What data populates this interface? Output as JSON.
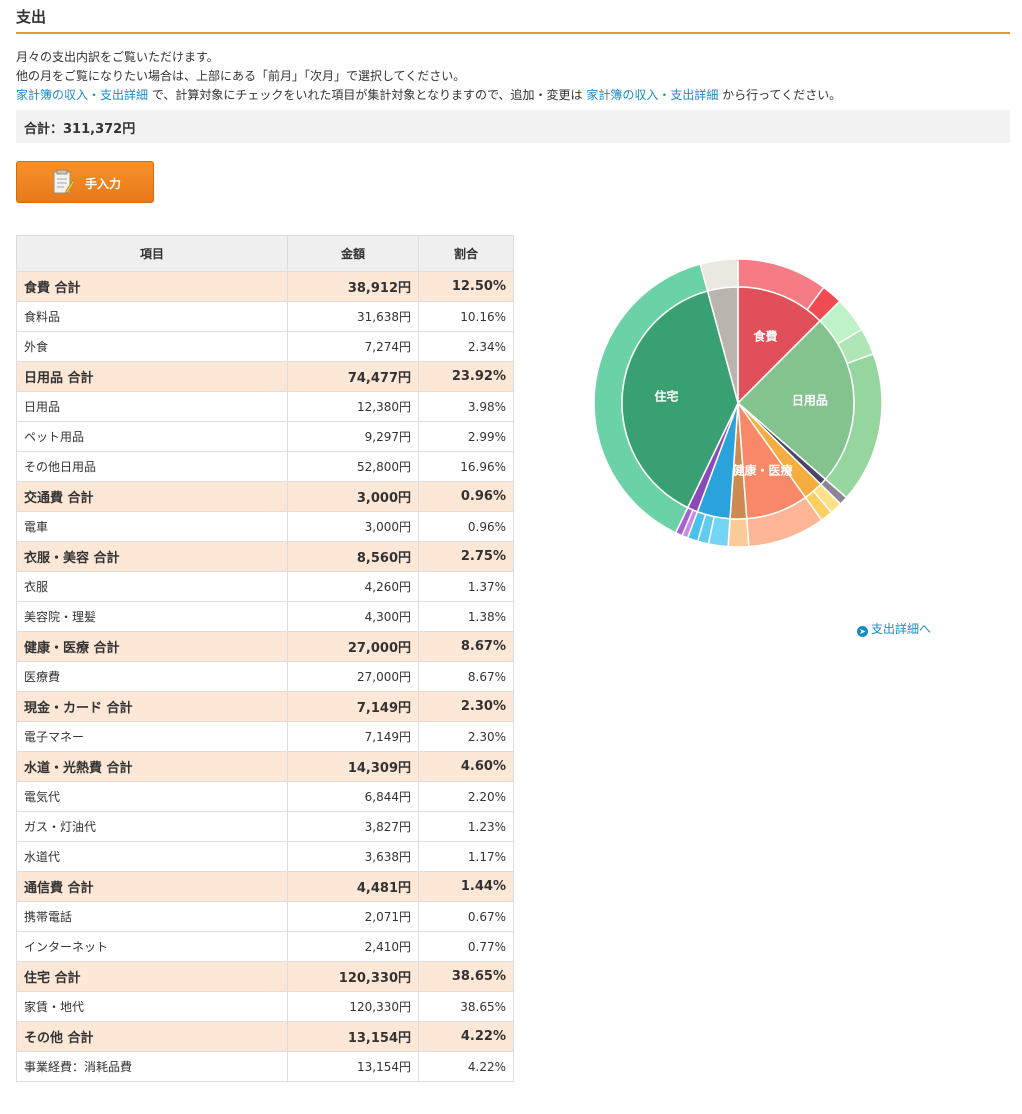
{
  "section_title": "支出",
  "intro": {
    "line1": "月々の支出内訳をご覧いただけます。",
    "line2": "他の月をご覧になりたい場合は、上部にある「前月」「次月」で選択してください。",
    "link1": "家計簿の収入・支出詳細",
    "line3_mid": " で、計算対象にチェックをいれた項目が集計対象となりますので、追加・変更は ",
    "link2": "家計簿の収入・支出詳細",
    "line3_end": " から行ってください。"
  },
  "total_label": "合計：311,372円",
  "manual_button": "手入力",
  "table": {
    "headers": [
      "項目",
      "金額",
      "割合"
    ],
    "rows": [
      {
        "type": "cat",
        "name": "食費 合計",
        "amount": "38,912円",
        "percent": "12.50%"
      },
      {
        "type": "sub",
        "name": "食料品",
        "amount": "31,638円",
        "percent": "10.16%"
      },
      {
        "type": "sub",
        "name": "外食",
        "amount": "7,274円",
        "percent": "2.34%"
      },
      {
        "type": "cat",
        "name": "日用品 合計",
        "amount": "74,477円",
        "percent": "23.92%"
      },
      {
        "type": "sub",
        "name": "日用品",
        "amount": "12,380円",
        "percent": "3.98%"
      },
      {
        "type": "sub",
        "name": "ペット用品",
        "amount": "9,297円",
        "percent": "2.99%"
      },
      {
        "type": "sub",
        "name": "その他日用品",
        "amount": "52,800円",
        "percent": "16.96%"
      },
      {
        "type": "cat",
        "name": "交通費 合計",
        "amount": "3,000円",
        "percent": "0.96%"
      },
      {
        "type": "sub",
        "name": "電車",
        "amount": "3,000円",
        "percent": "0.96%"
      },
      {
        "type": "cat",
        "name": "衣服・美容 合計",
        "amount": "8,560円",
        "percent": "2.75%"
      },
      {
        "type": "sub",
        "name": "衣服",
        "amount": "4,260円",
        "percent": "1.37%"
      },
      {
        "type": "sub",
        "name": "美容院・理髪",
        "amount": "4,300円",
        "percent": "1.38%"
      },
      {
        "type": "cat",
        "name": "健康・医療 合計",
        "amount": "27,000円",
        "percent": "8.67%"
      },
      {
        "type": "sub",
        "name": "医療費",
        "amount": "27,000円",
        "percent": "8.67%"
      },
      {
        "type": "cat",
        "name": "現金・カード 合計",
        "amount": "7,149円",
        "percent": "2.30%"
      },
      {
        "type": "sub",
        "name": "電子マネー",
        "amount": "7,149円",
        "percent": "2.30%"
      },
      {
        "type": "cat",
        "name": "水道・光熱費 合計",
        "amount": "14,309円",
        "percent": "4.60%"
      },
      {
        "type": "sub",
        "name": "電気代",
        "amount": "6,844円",
        "percent": "2.20%"
      },
      {
        "type": "sub",
        "name": "ガス・灯油代",
        "amount": "3,827円",
        "percent": "1.23%"
      },
      {
        "type": "sub",
        "name": "水道代",
        "amount": "3,638円",
        "percent": "1.17%"
      },
      {
        "type": "cat",
        "name": "通信費 合計",
        "amount": "4,481円",
        "percent": "1.44%"
      },
      {
        "type": "sub",
        "name": "携帯電話",
        "amount": "2,071円",
        "percent": "0.67%"
      },
      {
        "type": "sub",
        "name": "インターネット",
        "amount": "2,410円",
        "percent": "0.77%"
      },
      {
        "type": "cat",
        "name": "住宅 合計",
        "amount": "120,330円",
        "percent": "38.65%"
      },
      {
        "type": "sub",
        "name": "家賃・地代",
        "amount": "120,330円",
        "percent": "38.65%"
      },
      {
        "type": "cat",
        "name": "その他 合計",
        "amount": "13,154円",
        "percent": "4.22%"
      },
      {
        "type": "sub",
        "name": "事業経費：消耗品費",
        "amount": "13,154円",
        "percent": "4.22%"
      }
    ]
  },
  "chart_data": {
    "type": "pie",
    "inner": [
      {
        "name": "食費",
        "value": 38912,
        "color": "#e0505a",
        "label": "食費"
      },
      {
        "name": "日用品",
        "value": 74477,
        "color": "#82c38e",
        "label": "日用品"
      },
      {
        "name": "交通費",
        "value": 3000,
        "color": "#4a4466",
        "label": ""
      },
      {
        "name": "衣服・美容",
        "value": 8560,
        "color": "#f5ad40",
        "label": ""
      },
      {
        "name": "健康・医療",
        "value": 27000,
        "color": "#f98868",
        "label": "健康・医療"
      },
      {
        "name": "現金・カード",
        "value": 7149,
        "color": "#cf8a52",
        "label": ""
      },
      {
        "name": "水道・光熱費",
        "value": 14309,
        "color": "#2aa3dc",
        "label": ""
      },
      {
        "name": "通信費",
        "value": 4481,
        "color": "#8a48b8",
        "label": ""
      },
      {
        "name": "住宅",
        "value": 120330,
        "color": "#38a073",
        "label": "住宅"
      },
      {
        "name": "その他",
        "value": 13154,
        "color": "#b9b5ae",
        "label": ""
      }
    ],
    "outer": [
      {
        "name": "食料品",
        "value": 31638,
        "color": "#f57c84"
      },
      {
        "name": "外食",
        "value": 7274,
        "color": "#f04a52"
      },
      {
        "name": "日用品",
        "value": 12380,
        "color": "#bff2c7"
      },
      {
        "name": "ペット用品",
        "value": 9297,
        "color": "#aee6b5"
      },
      {
        "name": "その他日用品",
        "value": 52800,
        "color": "#95d59e"
      },
      {
        "name": "電車",
        "value": 3000,
        "color": "#8a8596"
      },
      {
        "name": "衣服",
        "value": 4260,
        "color": "#fde087"
      },
      {
        "name": "美容院・理髪",
        "value": 4300,
        "color": "#fbd060"
      },
      {
        "name": "医療費",
        "value": 27000,
        "color": "#fcb696"
      },
      {
        "name": "電子マネー",
        "value": 7149,
        "color": "#fccb9a"
      },
      {
        "name": "電気代",
        "value": 6844,
        "color": "#74d4f4"
      },
      {
        "name": "ガス・灯油代",
        "value": 3827,
        "color": "#5ecbf0"
      },
      {
        "name": "水道代",
        "value": 3638,
        "color": "#48c2ec"
      },
      {
        "name": "携帯電話",
        "value": 2071,
        "color": "#c98ae6"
      },
      {
        "name": "インターネット",
        "value": 2410,
        "color": "#a860d4"
      },
      {
        "name": "家賃・地代",
        "value": 120330,
        "color": "#6bd1a6"
      },
      {
        "name": "事業経費：消耗品費",
        "value": 13154,
        "color": "#ebe8e2"
      }
    ]
  },
  "detail_link": "支出詳細へ",
  "colors": {
    "accent": "#e8962e",
    "link": "#1a8ac7",
    "category_row_bg": "#fde8d8"
  }
}
